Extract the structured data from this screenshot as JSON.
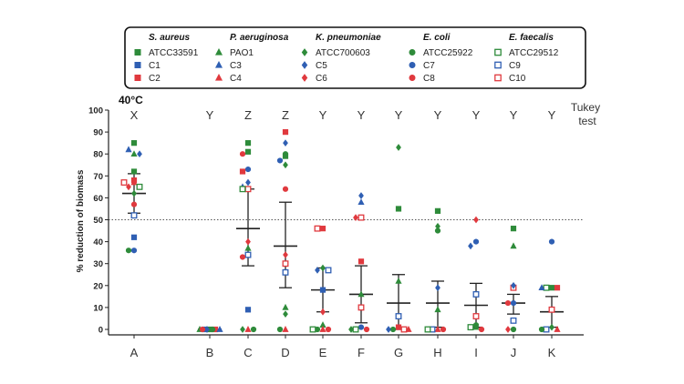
{
  "chart_data": {
    "type": "scatter",
    "title": "40°C",
    "ylabel": "% reduction of biomass",
    "xlabel": "",
    "ylim": [
      0,
      100
    ],
    "yticks": [
      0,
      10,
      20,
      30,
      40,
      50,
      60,
      70,
      80,
      90,
      100
    ],
    "threshold": 50,
    "tukey_label": [
      "Tukey",
      "test"
    ],
    "categories": [
      "A",
      "B",
      "C",
      "D",
      "E",
      "F",
      "G",
      "H",
      "I",
      "J",
      "K"
    ],
    "tukey_letters": [
      "X",
      "Y",
      "Z",
      "Z",
      "Y",
      "Y",
      "Y",
      "Y",
      "Y",
      "Y",
      "Y"
    ],
    "summary": [
      {
        "mean": 62,
        "upper": 71,
        "lower": 53
      },
      {
        "mean": 0,
        "upper": 0,
        "lower": 0
      },
      {
        "mean": 46,
        "upper": 64,
        "lower": 29
      },
      {
        "mean": 38,
        "upper": 58,
        "lower": 19
      },
      {
        "mean": 18,
        "upper": 28,
        "lower": 8
      },
      {
        "mean": 16,
        "upper": 29,
        "lower": 3
      },
      {
        "mean": 12,
        "upper": 25,
        "lower": 0
      },
      {
        "mean": 12,
        "upper": 22,
        "lower": 1
      },
      {
        "mean": 11,
        "upper": 21,
        "lower": 1
      },
      {
        "mean": 12,
        "upper": 16,
        "lower": 7
      },
      {
        "mean": 8,
        "upper": 15,
        "lower": 1
      }
    ],
    "legend_groups": [
      {
        "species": "S. aureus",
        "strains": [
          {
            "name": "ATCC33591",
            "marker": "square",
            "color": "#2e8b3a",
            "filled": true
          },
          {
            "name": "C1",
            "marker": "square",
            "color": "#2f5fb3",
            "filled": true
          },
          {
            "name": "C2",
            "marker": "square",
            "color": "#e0393e",
            "filled": true
          }
        ]
      },
      {
        "species": "P. aeruginosa",
        "strains": [
          {
            "name": "PAO1",
            "marker": "triangle",
            "color": "#2e8b3a",
            "filled": true
          },
          {
            "name": "C3",
            "marker": "triangle",
            "color": "#2f5fb3",
            "filled": true
          },
          {
            "name": "C4",
            "marker": "triangle",
            "color": "#e0393e",
            "filled": true
          }
        ]
      },
      {
        "species": "K. pneumoniae",
        "strains": [
          {
            "name": "ATCC700603",
            "marker": "diamond",
            "color": "#2e8b3a",
            "filled": true
          },
          {
            "name": "C5",
            "marker": "diamond",
            "color": "#2f5fb3",
            "filled": true
          },
          {
            "name": "C6",
            "marker": "diamond",
            "color": "#e0393e",
            "filled": true
          }
        ]
      },
      {
        "species": "E. coli",
        "strains": [
          {
            "name": "ATCC25922",
            "marker": "circle",
            "color": "#2e8b3a",
            "filled": true
          },
          {
            "name": "C7",
            "marker": "circle",
            "color": "#2f5fb3",
            "filled": true
          },
          {
            "name": "C8",
            "marker": "circle",
            "color": "#e0393e",
            "filled": true
          }
        ]
      },
      {
        "species": "E. faecalis",
        "strains": [
          {
            "name": "ATCC29512",
            "marker": "square",
            "color": "#2e8b3a",
            "filled": false
          },
          {
            "name": "C9",
            "marker": "square",
            "color": "#2f5fb3",
            "filled": false
          },
          {
            "name": "C10",
            "marker": "square",
            "color": "#e0393e",
            "filled": false
          }
        ]
      }
    ],
    "points": [
      {
        "cat": "A",
        "strain": "ATCC33591",
        "y": 85
      },
      {
        "cat": "A",
        "strain": "PAO1",
        "y": 80
      },
      {
        "cat": "A",
        "strain": "C3",
        "y": 82
      },
      {
        "cat": "A",
        "strain": "C5",
        "y": 80
      },
      {
        "cat": "A",
        "strain": "C2",
        "y": 68
      },
      {
        "cat": "A",
        "strain": "C4",
        "y": 67
      },
      {
        "cat": "A",
        "strain": "C6",
        "y": 65
      },
      {
        "cat": "A",
        "strain": "ATCC29512",
        "y": 65
      },
      {
        "cat": "A",
        "strain": "C10",
        "y": 67
      },
      {
        "cat": "A",
        "strain": "ATCC700603",
        "y": 62
      },
      {
        "cat": "A",
        "strain": "C8",
        "y": 57
      },
      {
        "cat": "A",
        "strain": "C9",
        "y": 52
      },
      {
        "cat": "A",
        "strain": "C1",
        "y": 42
      },
      {
        "cat": "A",
        "strain": "C7",
        "y": 36
      },
      {
        "cat": "A",
        "strain": "ATCC25922",
        "y": 36
      },
      {
        "cat": "A",
        "strain": "ATCC33591",
        "y": 72
      },
      {
        "cat": "B",
        "strain": "ATCC33591",
        "y": 0
      },
      {
        "cat": "B",
        "strain": "C1",
        "y": 0
      },
      {
        "cat": "B",
        "strain": "C2",
        "y": 0
      },
      {
        "cat": "B",
        "strain": "PAO1",
        "y": 0
      },
      {
        "cat": "B",
        "strain": "C3",
        "y": 0
      },
      {
        "cat": "B",
        "strain": "C5",
        "y": 0
      },
      {
        "cat": "B",
        "strain": "ATCC25922",
        "y": 0
      },
      {
        "cat": "B",
        "strain": "C8",
        "y": 0
      },
      {
        "cat": "C",
        "strain": "ATCC33591",
        "y": 85
      },
      {
        "cat": "C",
        "strain": "ATCC33591",
        "y": 81
      },
      {
        "cat": "C",
        "strain": "C8",
        "y": 80
      },
      {
        "cat": "C",
        "strain": "C7",
        "y": 73
      },
      {
        "cat": "C",
        "strain": "C2",
        "y": 72
      },
      {
        "cat": "C",
        "strain": "C5",
        "y": 67
      },
      {
        "cat": "C",
        "strain": "C3",
        "y": 65
      },
      {
        "cat": "C",
        "strain": "C10",
        "y": 64
      },
      {
        "cat": "C",
        "strain": "ATCC29512",
        "y": 64
      },
      {
        "cat": "C",
        "strain": "C6",
        "y": 40
      },
      {
        "cat": "C",
        "strain": "PAO1",
        "y": 37
      },
      {
        "cat": "C",
        "strain": "C9",
        "y": 34
      },
      {
        "cat": "C",
        "strain": "C8",
        "y": 33
      },
      {
        "cat": "C",
        "strain": "C1",
        "y": 9
      },
      {
        "cat": "C",
        "strain": "C4",
        "y": 0
      },
      {
        "cat": "C",
        "strain": "ATCC700603",
        "y": 0
      },
      {
        "cat": "C",
        "strain": "ATCC25922",
        "y": 0
      },
      {
        "cat": "D",
        "strain": "C2",
        "y": 90
      },
      {
        "cat": "D",
        "strain": "C5",
        "y": 85
      },
      {
        "cat": "D",
        "strain": "ATCC25922",
        "y": 80
      },
      {
        "cat": "D",
        "strain": "ATCC33591",
        "y": 79
      },
      {
        "cat": "D",
        "strain": "C7",
        "y": 77
      },
      {
        "cat": "D",
        "strain": "ATCC700603",
        "y": 75
      },
      {
        "cat": "D",
        "strain": "C8",
        "y": 64
      },
      {
        "cat": "D",
        "strain": "C6",
        "y": 34
      },
      {
        "cat": "D",
        "strain": "C10",
        "y": 30
      },
      {
        "cat": "D",
        "strain": "C9",
        "y": 26
      },
      {
        "cat": "D",
        "strain": "PAO1",
        "y": 10
      },
      {
        "cat": "D",
        "strain": "ATCC700603",
        "y": 7
      },
      {
        "cat": "D",
        "strain": "C4",
        "y": 0
      },
      {
        "cat": "D",
        "strain": "ATCC25922",
        "y": 0
      },
      {
        "cat": "E",
        "strain": "C2",
        "y": 46
      },
      {
        "cat": "E",
        "strain": "C10",
        "y": 46
      },
      {
        "cat": "E",
        "strain": "ATCC700603",
        "y": 28
      },
      {
        "cat": "E",
        "strain": "C5",
        "y": 27
      },
      {
        "cat": "E",
        "strain": "C9",
        "y": 27
      },
      {
        "cat": "E",
        "strain": "C1",
        "y": 18
      },
      {
        "cat": "E",
        "strain": "C6",
        "y": 8
      },
      {
        "cat": "E",
        "strain": "PAO1",
        "y": 2
      },
      {
        "cat": "E",
        "strain": "C4",
        "y": 0
      },
      {
        "cat": "E",
        "strain": "ATCC25922",
        "y": 0
      },
      {
        "cat": "E",
        "strain": "C8",
        "y": 0
      },
      {
        "cat": "E",
        "strain": "ATCC29512",
        "y": 0
      },
      {
        "cat": "F",
        "strain": "C5",
        "y": 61
      },
      {
        "cat": "F",
        "strain": "C3",
        "y": 58
      },
      {
        "cat": "F",
        "strain": "C10",
        "y": 51
      },
      {
        "cat": "F",
        "strain": "C6",
        "y": 51
      },
      {
        "cat": "F",
        "strain": "C2",
        "y": 31
      },
      {
        "cat": "F",
        "strain": "PAO1",
        "y": 16
      },
      {
        "cat": "F",
        "strain": "C10",
        "y": 10
      },
      {
        "cat": "F",
        "strain": "C7",
        "y": 1
      },
      {
        "cat": "F",
        "strain": "ATCC29512",
        "y": 0
      },
      {
        "cat": "F",
        "strain": "C8",
        "y": 0
      },
      {
        "cat": "F",
        "strain": "ATCC700603",
        "y": 0
      },
      {
        "cat": "G",
        "strain": "ATCC700603",
        "y": 83
      },
      {
        "cat": "G",
        "strain": "ATCC33591",
        "y": 55
      },
      {
        "cat": "G",
        "strain": "PAO1",
        "y": 22
      },
      {
        "cat": "G",
        "strain": "C9",
        "y": 6
      },
      {
        "cat": "G",
        "strain": "C2",
        "y": 1
      },
      {
        "cat": "G",
        "strain": "ATCC25922",
        "y": 0
      },
      {
        "cat": "G",
        "strain": "C10",
        "y": 0
      },
      {
        "cat": "G",
        "strain": "C5",
        "y": 0
      },
      {
        "cat": "G",
        "strain": "C4",
        "y": 0
      },
      {
        "cat": "H",
        "strain": "ATCC33591",
        "y": 54
      },
      {
        "cat": "H",
        "strain": "ATCC700603",
        "y": 47
      },
      {
        "cat": "H",
        "strain": "ATCC25922",
        "y": 45
      },
      {
        "cat": "H",
        "strain": "C5",
        "y": 19
      },
      {
        "cat": "H",
        "strain": "PAO1",
        "y": 9
      },
      {
        "cat": "H",
        "strain": "C4",
        "y": 0
      },
      {
        "cat": "H",
        "strain": "C9",
        "y": 0
      },
      {
        "cat": "H",
        "strain": "C8",
        "y": 0
      },
      {
        "cat": "H",
        "strain": "ATCC29512",
        "y": 0
      },
      {
        "cat": "I",
        "strain": "C6",
        "y": 50
      },
      {
        "cat": "I",
        "strain": "C7",
        "y": 40
      },
      {
        "cat": "I",
        "strain": "C5",
        "y": 38
      },
      {
        "cat": "I",
        "strain": "C9",
        "y": 16
      },
      {
        "cat": "I",
        "strain": "C10",
        "y": 6
      },
      {
        "cat": "I",
        "strain": "ATCC25922",
        "y": 2
      },
      {
        "cat": "I",
        "strain": "PAO1",
        "y": 1
      },
      {
        "cat": "I",
        "strain": "ATCC29512",
        "y": 1
      },
      {
        "cat": "I",
        "strain": "C8",
        "y": 0
      },
      {
        "cat": "J",
        "strain": "ATCC33591",
        "y": 46
      },
      {
        "cat": "J",
        "strain": "PAO1",
        "y": 38
      },
      {
        "cat": "J",
        "strain": "C10",
        "y": 19
      },
      {
        "cat": "J",
        "strain": "C5",
        "y": 20
      },
      {
        "cat": "J",
        "strain": "C7",
        "y": 12
      },
      {
        "cat": "J",
        "strain": "C8",
        "y": 12
      },
      {
        "cat": "J",
        "strain": "C9",
        "y": 4
      },
      {
        "cat": "J",
        "strain": "ATCC25922",
        "y": 0
      },
      {
        "cat": "J",
        "strain": "C6",
        "y": 0
      },
      {
        "cat": "K",
        "strain": "C7",
        "y": 40
      },
      {
        "cat": "K",
        "strain": "ATCC33591",
        "y": 19
      },
      {
        "cat": "K",
        "strain": "ATCC29512",
        "y": 19
      },
      {
        "cat": "K",
        "strain": "C2",
        "y": 19
      },
      {
        "cat": "K",
        "strain": "C3",
        "y": 19
      },
      {
        "cat": "K",
        "strain": "C10",
        "y": 9
      },
      {
        "cat": "K",
        "strain": "ATCC700603",
        "y": 1
      },
      {
        "cat": "K",
        "strain": "C9",
        "y": 0
      },
      {
        "cat": "K",
        "strain": "C4",
        "y": 0
      },
      {
        "cat": "K",
        "strain": "ATCC25922",
        "y": 0
      }
    ]
  }
}
